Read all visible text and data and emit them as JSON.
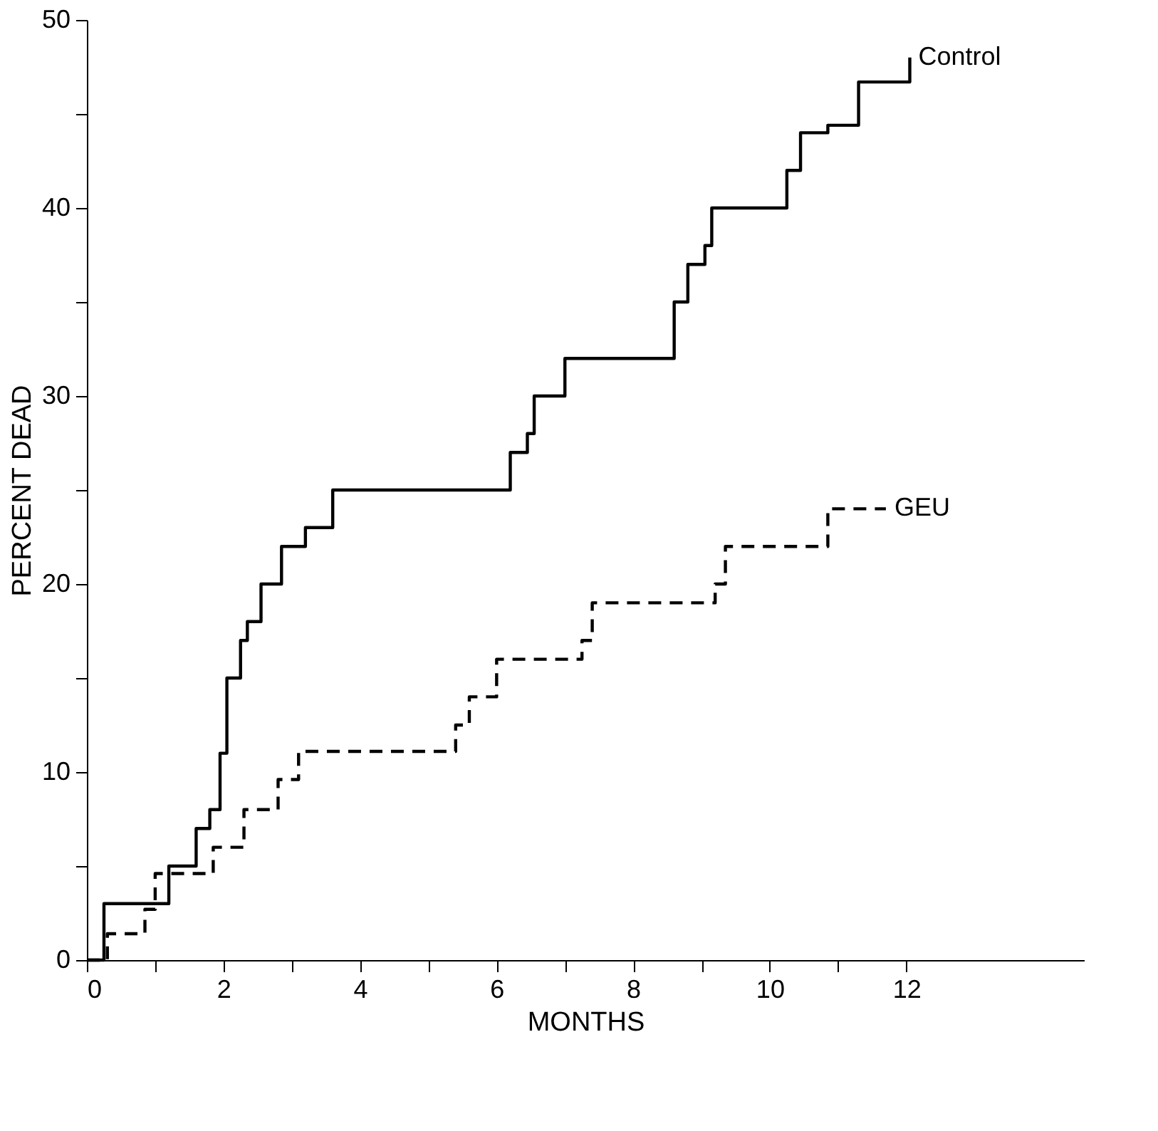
{
  "chart_data": {
    "type": "step",
    "xlabel": "MONTHS",
    "ylabel": "PERCENT DEAD",
    "xlim": [
      0,
      14.6
    ],
    "ylim": [
      0,
      50
    ],
    "xticks": [
      0,
      {
        "value": 1,
        "label": null
      },
      2,
      {
        "value": 3,
        "label": null
      },
      4,
      {
        "value": 5,
        "label": null
      },
      6,
      {
        "value": 7,
        "label": null
      },
      8,
      {
        "value": 9,
        "label": null
      },
      10,
      {
        "value": 11,
        "label": null
      },
      12
    ],
    "yticks": [
      0,
      {
        "value": 5,
        "label": null
      },
      10,
      {
        "value": 15,
        "label": null
      },
      20,
      {
        "value": 25,
        "label": null
      },
      30,
      {
        "value": 35,
        "label": null
      },
      40,
      {
        "value": 45,
        "label": null
      },
      50
    ],
    "grid": false,
    "marker": "none",
    "series": [
      {
        "name": "Control",
        "color": "#000000",
        "line_style": "solid",
        "x": [
          0,
          0.25,
          1.2,
          1.6,
          1.8,
          1.95,
          2.05,
          2.25,
          2.35,
          2.55,
          2.85,
          3.2,
          3.6,
          6.2,
          6.45,
          6.55,
          7.0,
          8.6,
          8.8,
          9.05,
          9.15,
          10.25,
          10.45,
          10.85,
          11.3,
          12.05
        ],
        "values": [
          0,
          3,
          5,
          7,
          8,
          11,
          15,
          17,
          18,
          20,
          22,
          23,
          25,
          27,
          28,
          30,
          32,
          35,
          37,
          38,
          40,
          42,
          44,
          44.4,
          46.7,
          48
        ]
      },
      {
        "name": "GEU",
        "color": "#000000",
        "line_style": "dashed",
        "x": [
          0,
          0.3,
          0.85,
          1.0,
          1.85,
          2.3,
          2.8,
          3.1,
          5.4,
          5.6,
          6.0,
          7.25,
          7.4,
          9.2,
          9.35,
          10.85,
          11.7
        ],
        "values": [
          0,
          1.4,
          2.7,
          4.6,
          6,
          8,
          9.6,
          11.1,
          12.5,
          14,
          16,
          17,
          19,
          20,
          22,
          24,
          24
        ]
      }
    ]
  }
}
